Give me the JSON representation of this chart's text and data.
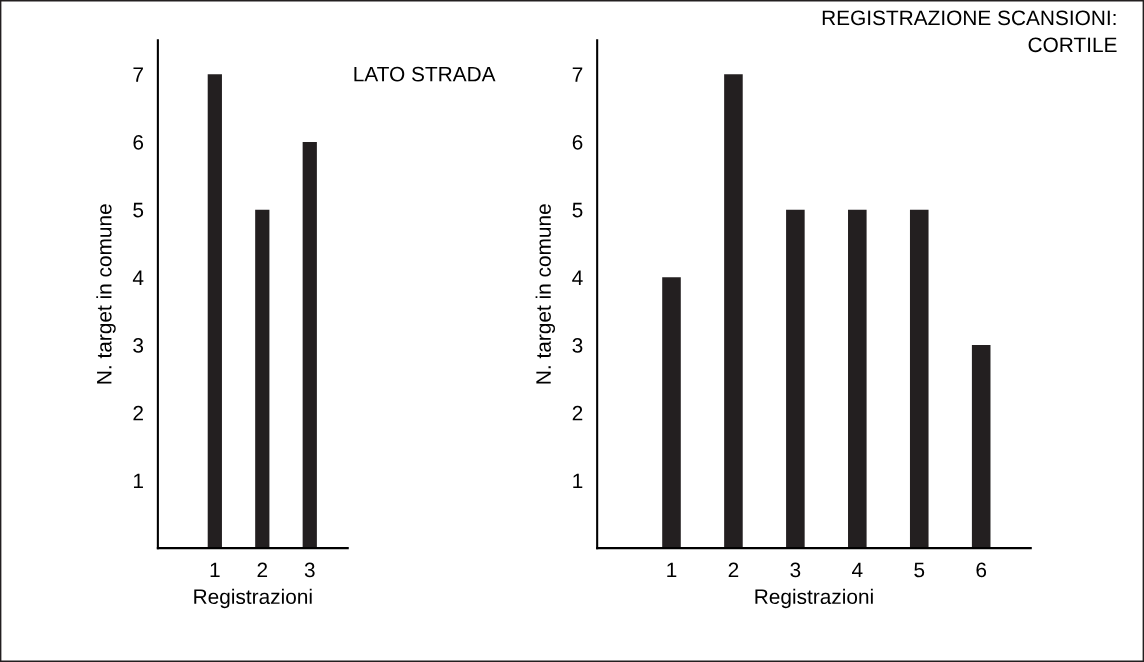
{
  "chart_data": [
    {
      "type": "bar",
      "title": "LATO STRADA",
      "xlabel": "Registrazioni",
      "ylabel": "N. target in comune",
      "categories": [
        "1",
        "2",
        "3"
      ],
      "values": [
        7,
        5,
        6
      ],
      "color": "#231f20",
      "ylim": [
        0,
        7.5
      ],
      "yticks": [
        1,
        2,
        3,
        4,
        5,
        6,
        7
      ],
      "grid": false,
      "legend": false
    },
    {
      "type": "bar",
      "title": "REGISTRAZIONE SCANSIONI:\nCORTILE",
      "xlabel": "Registrazioni",
      "ylabel": "N. target in comune",
      "categories": [
        "1",
        "2",
        "3",
        "4",
        "5",
        "6"
      ],
      "values": [
        4,
        7,
        5,
        5,
        5,
        3
      ],
      "color": "#231f20",
      "ylim": [
        0,
        7.5
      ],
      "yticks": [
        1,
        2,
        3,
        4,
        5,
        6,
        7
      ],
      "grid": false,
      "legend": false
    }
  ]
}
